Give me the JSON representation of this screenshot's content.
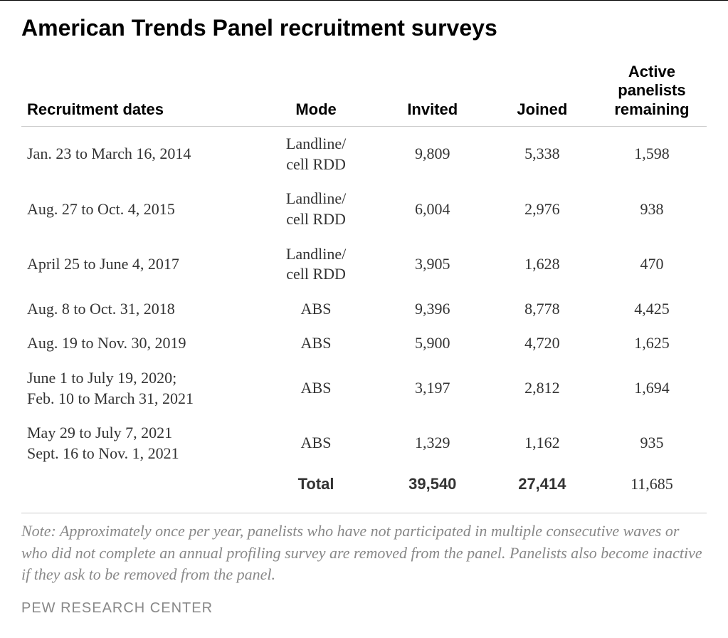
{
  "title": "American Trends Panel recruitment surveys",
  "headers": {
    "dates": "Recruitment dates",
    "mode": "Mode",
    "invited": "Invited",
    "joined": "Joined",
    "active_line1": "Active",
    "active_line2": "panelists",
    "active_line3": "remaining"
  },
  "rows": [
    {
      "dates": "Jan. 23 to March 16, 2014",
      "mode_line1": "Landline/",
      "mode_line2": "cell RDD",
      "invited": "9,809",
      "joined": "5,338",
      "active": "1,598"
    },
    {
      "dates": "Aug. 27 to Oct. 4, 2015",
      "mode_line1": "Landline/",
      "mode_line2": "cell RDD",
      "invited": "6,004",
      "joined": "2,976",
      "active": "938"
    },
    {
      "dates": "April 25 to June 4, 2017",
      "mode_line1": "Landline/",
      "mode_line2": "cell RDD",
      "invited": "3,905",
      "joined": "1,628",
      "active": "470"
    },
    {
      "dates": "Aug. 8 to Oct. 31, 2018",
      "mode_line1": "ABS",
      "mode_line2": "",
      "invited": "9,396",
      "joined": "8,778",
      "active": "4,425"
    },
    {
      "dates": "Aug. 19 to Nov. 30, 2019",
      "mode_line1": "ABS",
      "mode_line2": "",
      "invited": "5,900",
      "joined": "4,720",
      "active": "1,625"
    },
    {
      "dates_line1": "June 1 to July 19, 2020;",
      "dates_line2": "Feb. 10 to March 31, 2021",
      "mode_line1": "ABS",
      "mode_line2": "",
      "invited": "3,197",
      "joined": "2,812",
      "active": "1,694"
    },
    {
      "dates_line1": "May 29 to July 7, 2021",
      "dates_line2": "Sept. 16 to Nov. 1, 2021",
      "mode_line1": "ABS",
      "mode_line2": "",
      "invited": "1,329",
      "joined": "1,162",
      "active": "935"
    }
  ],
  "total": {
    "label": "Total",
    "invited": "39,540",
    "joined": "27,414",
    "active": "11,685"
  },
  "note": "Note: Approximately once per year, panelists who have not participated in multiple consecutive waves or who did not complete an annual profiling survey are removed from the panel. Panelists also become inactive if they ask to be removed from the panel.",
  "source": "PEW RESEARCH CENTER",
  "styling": {
    "title_fontsize": 32,
    "body_fontsize": 22,
    "note_fontsize": 22,
    "source_fontsize": 20,
    "title_color": "#000000",
    "body_color": "#333333",
    "note_color": "#888888",
    "source_color": "#888888",
    "header_border": "#cccccc",
    "top_border": "#000000",
    "title_font": "Arial, Helvetica, sans-serif",
    "body_font": "Georgia, 'Times New Roman', serif",
    "background_color": "#ffffff"
  }
}
